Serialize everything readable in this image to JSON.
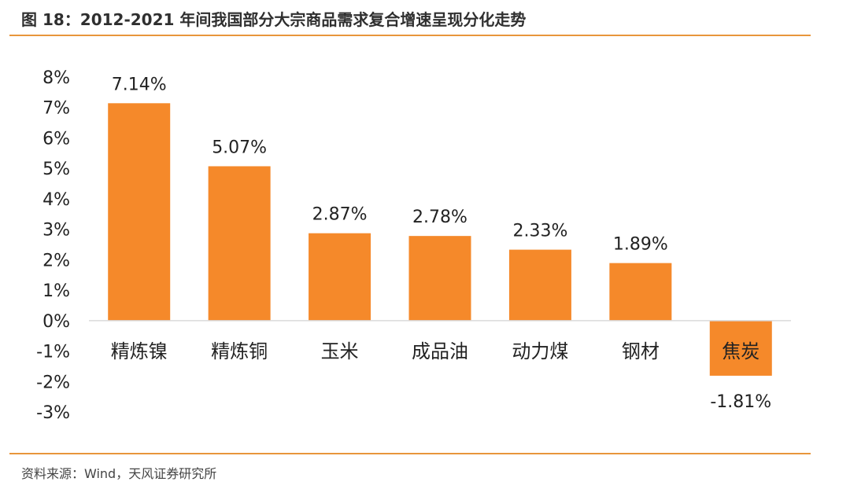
{
  "header": {
    "title": "图 18：2012-2021 年间我国部分大宗商品需求复合增速呈现分化走势"
  },
  "footer": {
    "source": "资料来源：Wind，天风证券研究所"
  },
  "colors": {
    "bar": "#f5892a",
    "accent_rule": "#e8963c",
    "axis": "#d9d9d9",
    "text": "#222222"
  },
  "chart_data": {
    "type": "bar",
    "categories": [
      "精炼镍",
      "精炼铜",
      "玉米",
      "成品油",
      "动力煤",
      "钢材",
      "焦炭"
    ],
    "values": [
      7.14,
      5.07,
      2.87,
      2.78,
      2.33,
      1.89,
      -1.81
    ],
    "data_labels": [
      "7.14%",
      "5.07%",
      "2.87%",
      "2.78%",
      "2.33%",
      "1.89%",
      "-1.81%"
    ],
    "ylim": [
      -3,
      8
    ],
    "yticks": [
      8,
      7,
      6,
      5,
      4,
      3,
      2,
      1,
      0,
      -1,
      -2,
      -3
    ],
    "ytick_labels": [
      "8%",
      "7%",
      "6%",
      "5%",
      "4%",
      "3%",
      "2%",
      "1%",
      "0%",
      "-1%",
      "-2%",
      "-3%"
    ],
    "grid": false,
    "legend": "none"
  }
}
